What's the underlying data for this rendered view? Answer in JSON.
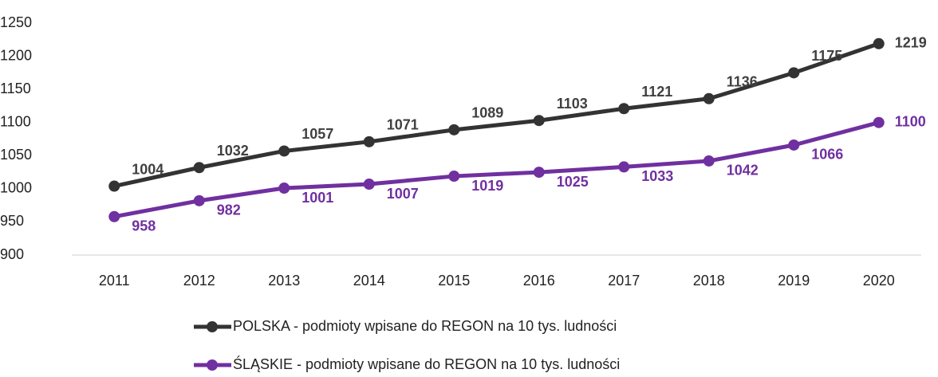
{
  "chart_data": {
    "type": "line",
    "categories": [
      "2011",
      "2012",
      "2013",
      "2014",
      "2015",
      "2016",
      "2017",
      "2018",
      "2019",
      "2020"
    ],
    "series": [
      {
        "name": "POLSKA - podmioty wpisane do REGON na 10 tys. ludności",
        "color": "#333333",
        "values": [
          1004,
          1032,
          1057,
          1071,
          1089,
          1103,
          1121,
          1136,
          1175,
          1219
        ]
      },
      {
        "name": "ŚLĄSKIE - podmioty wpisane do REGON na 10 tys. ludności",
        "color": "#7030a0",
        "values": [
          958,
          982,
          1001,
          1007,
          1019,
          1025,
          1033,
          1042,
          1066,
          1100
        ]
      }
    ],
    "ylim": [
      900,
      1250
    ],
    "yticks": [
      900,
      950,
      1000,
      1050,
      1100,
      1150,
      1200,
      1250
    ],
    "grid": false,
    "legend": "bottom"
  }
}
